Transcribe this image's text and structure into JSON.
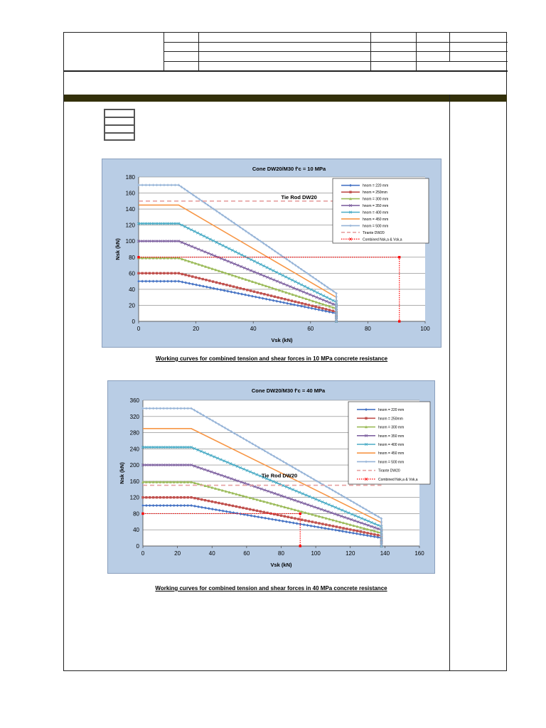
{
  "chart_data": [
    {
      "type": "line",
      "title": "Cone DW20/M30 f'c = 10 MPa",
      "xlabel": "Vsk (kN)",
      "ylabel": "Nsk (kN)",
      "xlim": [
        0,
        100
      ],
      "ylim": [
        0,
        180
      ],
      "xticks": [
        0,
        20,
        40,
        60,
        80,
        100
      ],
      "yticks": [
        0,
        20,
        40,
        60,
        80,
        100,
        120,
        140,
        160,
        180
      ],
      "grid": "horizontal",
      "legend_position": "top-right",
      "annotation": "Tie Rod DW20",
      "series": [
        {
          "name": "hnom = 220 mm",
          "color": "#4472c4",
          "marker": "diamond",
          "x": [
            0,
            14,
            69,
            69
          ],
          "y": [
            50,
            50,
            10,
            0
          ]
        },
        {
          "name": "hnom = 250mm",
          "color": "#c0504d",
          "marker": "square",
          "x": [
            0,
            14,
            69,
            69
          ],
          "y": [
            60,
            60,
            12,
            0
          ]
        },
        {
          "name": "hnom = 300 mm",
          "color": "#9bbb59",
          "marker": "triangle",
          "x": [
            0,
            14,
            69,
            69
          ],
          "y": [
            79,
            79,
            16,
            0
          ]
        },
        {
          "name": "hnom = 350 mm",
          "color": "#8064a2",
          "marker": "x",
          "x": [
            0,
            14,
            69,
            69
          ],
          "y": [
            100,
            100,
            20,
            0
          ]
        },
        {
          "name": "hnom = 400 mm",
          "color": "#4bacc6",
          "marker": "x",
          "x": [
            0,
            14,
            69,
            69
          ],
          "y": [
            122,
            122,
            24,
            0
          ]
        },
        {
          "name": "hnom = 450 mm",
          "color": "#f79646",
          "marker": "none",
          "x": [
            0,
            14,
            69,
            69
          ],
          "y": [
            145,
            145,
            30,
            0
          ]
        },
        {
          "name": "hnom = 500 mm",
          "color": "#95b3d7",
          "marker": "plus",
          "x": [
            0,
            14,
            69,
            69
          ],
          "y": [
            170,
            170,
            35,
            0
          ]
        },
        {
          "name": "Tirante DW20",
          "color": "#e6a0a0",
          "style": "dashed",
          "marker": "none",
          "x": [
            0,
            69
          ],
          "y": [
            150,
            150
          ]
        },
        {
          "name": "Combined Nsk,a & Vsk,a",
          "color": "#ff0000",
          "style": "dotted",
          "marker": "square",
          "x": [
            0,
            91,
            91
          ],
          "y": [
            80,
            80,
            0
          ]
        }
      ]
    },
    {
      "type": "line",
      "title": "Cone DW20/M30 f'c = 40 MPa",
      "xlabel": "Vsk (kN)",
      "ylabel": "Nsk (kN)",
      "xlim": [
        0,
        160
      ],
      "ylim": [
        0,
        360
      ],
      "xticks": [
        0,
        20,
        40,
        60,
        80,
        100,
        120,
        140,
        160
      ],
      "yticks": [
        0,
        40,
        80,
        120,
        160,
        200,
        240,
        280,
        320,
        360
      ],
      "grid": "horizontal",
      "legend_position": "top-right",
      "annotation": "Tie Rod DW20",
      "series": [
        {
          "name": "hnom = 220 mm",
          "color": "#4472c4",
          "marker": "diamond",
          "x": [
            0,
            28,
            138,
            138
          ],
          "y": [
            100,
            100,
            20,
            0
          ]
        },
        {
          "name": "hnom = 250mm",
          "color": "#c0504d",
          "marker": "square",
          "x": [
            0,
            28,
            138,
            138
          ],
          "y": [
            120,
            120,
            25,
            0
          ]
        },
        {
          "name": "hnom = 300 mm",
          "color": "#9bbb59",
          "marker": "triangle",
          "x": [
            0,
            28,
            138,
            138
          ],
          "y": [
            158,
            158,
            32,
            0
          ]
        },
        {
          "name": "hnom = 350 mm",
          "color": "#8064a2",
          "marker": "x",
          "x": [
            0,
            28,
            138,
            138
          ],
          "y": [
            200,
            200,
            40,
            0
          ]
        },
        {
          "name": "hnom = 400 mm",
          "color": "#4bacc6",
          "marker": "x",
          "x": [
            0,
            28,
            138,
            138
          ],
          "y": [
            244,
            244,
            48,
            0
          ]
        },
        {
          "name": "hnom = 450 mm",
          "color": "#f79646",
          "marker": "none",
          "x": [
            0,
            28,
            138,
            138
          ],
          "y": [
            290,
            290,
            58,
            0
          ]
        },
        {
          "name": "hnom = 500 mm",
          "color": "#95b3d7",
          "marker": "plus",
          "x": [
            0,
            28,
            138,
            138
          ],
          "y": [
            340,
            340,
            68,
            0
          ]
        },
        {
          "name": "Tirante DW20",
          "color": "#e6a0a0",
          "style": "dashed",
          "marker": "none",
          "x": [
            0,
            138
          ],
          "y": [
            150,
            150
          ]
        },
        {
          "name": "Combined Nsk,a & Vsk,a",
          "color": "#ff0000",
          "style": "dotted",
          "marker": "square",
          "x": [
            0,
            91,
            91
          ],
          "y": [
            80,
            80,
            0
          ]
        }
      ]
    }
  ],
  "captions": {
    "chart1": "Working curves for combined tension and shear forces in 10 MPa concrete resistance",
    "chart2": "Working curves for combined tension and shear forces in 40 MPa concrete resistance"
  }
}
